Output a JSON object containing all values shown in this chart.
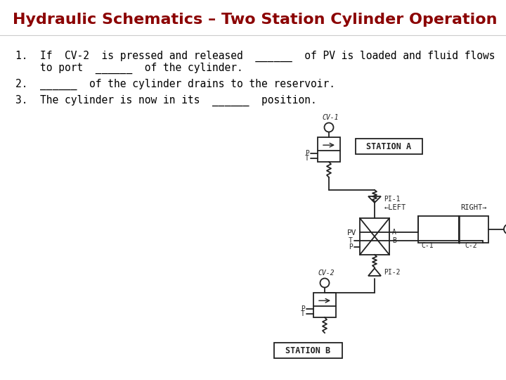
{
  "title": "Hydraulic Schematics – Two Station Cylinder Operation",
  "title_color": "#8B0000",
  "title_fontsize": 16,
  "bg_color": "#FFFFFF",
  "text_color": "#000000",
  "line1a": "1.  If  CV-2  is pressed and released",
  "line1b": "______ of PV is loaded and fluid flows",
  "line2a": "    to port ______  of the cylinder.",
  "line3": "2.  ______  of the cylinder drains to the reservoir.",
  "line4": "3.  The cylinder is now in its ______  position.",
  "schematic_color": "#222222",
  "lw": 1.3
}
